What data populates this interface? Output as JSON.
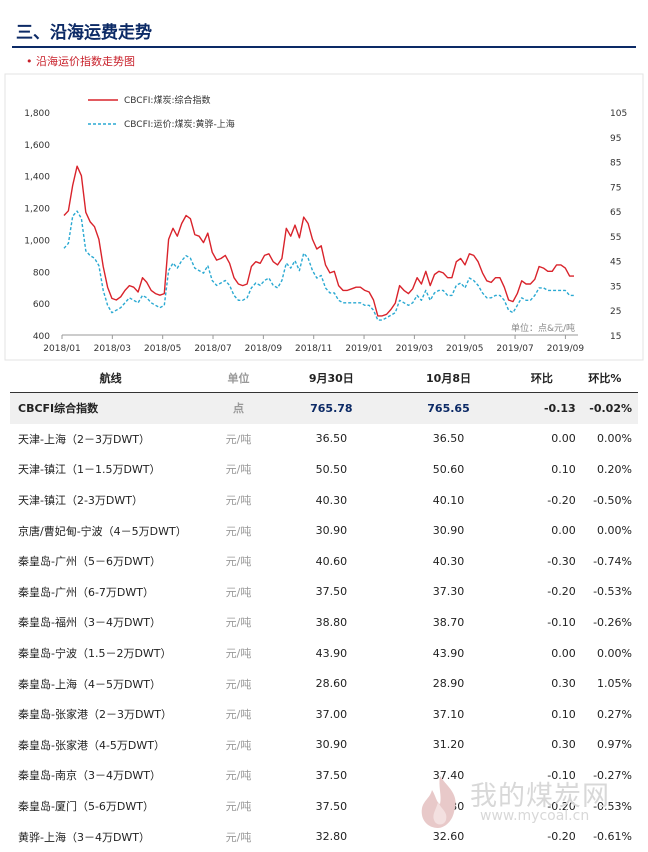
{
  "section_title": "三、沿海运费走势",
  "chart_title": "• 沿海运价指数走势图",
  "chart_data": {
    "type": "line",
    "x_ticks": [
      "2018/01",
      "2018/03",
      "2018/05",
      "2018/07",
      "2018/09",
      "2018/11",
      "2019/01",
      "2019/03",
      "2019/05",
      "2019/07",
      "2019/09"
    ],
    "y_left_ticks": [
      "400",
      "600",
      "800",
      "1,000",
      "1,200",
      "1,400",
      "1,600",
      "1,800"
    ],
    "y_left_range": [
      400,
      1800
    ],
    "y_right_ticks": [
      "15",
      "25",
      "35",
      "45",
      "55",
      "65",
      "75",
      "85",
      "95",
      "105"
    ],
    "y_right_range": [
      15,
      105
    ],
    "unit_note": "单位：点&元/吨",
    "legend_position": "top-left",
    "series": [
      {
        "name": "CBCFI:煤炭:综合指数",
        "axis": "left",
        "color": "#d9232b",
        "dash": "solid",
        "values": [
          1150,
          1180,
          1340,
          1460,
          1400,
          1170,
          1110,
          1080,
          1000,
          830,
          700,
          630,
          620,
          640,
          680,
          710,
          700,
          670,
          760,
          730,
          680,
          660,
          650,
          660,
          1000,
          1070,
          1020,
          1100,
          1150,
          1130,
          1030,
          1020,
          980,
          1040,
          920,
          870,
          880,
          900,
          850,
          760,
          720,
          710,
          720,
          830,
          860,
          850,
          900,
          910,
          860,
          840,
          880,
          1070,
          1020,
          1090,
          1010,
          1140,
          1100,
          1000,
          940,
          960,
          840,
          790,
          800,
          710,
          680,
          680,
          690,
          700,
          700,
          680,
          670,
          620,
          520,
          520,
          530,
          560,
          600,
          710,
          680,
          660,
          690,
          760,
          720,
          800,
          710,
          780,
          800,
          790,
          760,
          760,
          860,
          880,
          840,
          910,
          900,
          860,
          790,
          740,
          730,
          760,
          760,
          700,
          620,
          610,
          660,
          740,
          720,
          720,
          750,
          830,
          820,
          800,
          800,
          840,
          840,
          820,
          770,
          770
        ]
      },
      {
        "name": "CBCFI:运价:煤炭:黄骅-上海",
        "axis": "right",
        "color": "#2aa9d2",
        "dash": "dotted",
        "values": [
          50,
          52,
          63,
          65,
          62,
          49,
          47,
          46,
          43,
          33,
          27,
          24,
          25,
          26,
          28,
          30,
          29,
          28,
          31,
          30,
          28,
          27,
          26,
          27,
          41,
          44,
          42,
          45,
          47,
          46,
          42,
          41,
          40,
          43,
          37,
          35,
          36,
          37,
          35,
          31,
          29,
          29,
          30,
          34,
          36,
          35,
          37,
          38,
          35,
          34,
          37,
          44,
          42,
          45,
          41,
          48,
          46,
          41,
          38,
          39,
          34,
          32,
          32,
          29,
          28,
          28,
          28,
          28,
          28,
          27,
          27,
          25,
          21,
          21,
          22,
          23,
          24,
          29,
          28,
          27,
          28,
          31,
          29,
          33,
          29,
          32,
          33,
          33,
          31,
          31,
          35,
          36,
          34,
          38,
          37,
          35,
          32,
          30,
          30,
          31,
          31,
          29,
          25,
          24,
          27,
          30,
          29,
          29,
          31,
          34,
          34,
          33,
          33,
          33,
          33,
          33,
          31,
          31
        ]
      }
    ]
  },
  "table": {
    "headers": [
      "航线",
      "单位",
      "9月30日",
      "10月8日",
      "环比",
      "环比%"
    ],
    "rows": [
      [
        "CBCFI综合指数",
        "点",
        "765.78",
        "765.65",
        "-0.13",
        "-0.02%"
      ],
      [
        "天津-上海（2－3万DWT）",
        "元/吨",
        "36.50",
        "36.50",
        "0.00",
        "0.00%"
      ],
      [
        "天津-镇江（1－1.5万DWT）",
        "元/吨",
        "50.50",
        "50.60",
        "0.10",
        "0.20%"
      ],
      [
        "天津-镇江（2-3万DWT）",
        "元/吨",
        "40.30",
        "40.10",
        "-0.20",
        "-0.50%"
      ],
      [
        "京唐/曹妃甸-宁波（4－5万DWT）",
        "元/吨",
        "30.90",
        "30.90",
        "0.00",
        "0.00%"
      ],
      [
        "秦皇岛-广州（5－6万DWT）",
        "元/吨",
        "40.60",
        "40.30",
        "-0.30",
        "-0.74%"
      ],
      [
        "秦皇岛-广州（6-7万DWT）",
        "元/吨",
        "37.50",
        "37.30",
        "-0.20",
        "-0.53%"
      ],
      [
        "秦皇岛-福州（3－4万DWT）",
        "元/吨",
        "38.80",
        "38.70",
        "-0.10",
        "-0.26%"
      ],
      [
        "秦皇岛-宁波（1.5－2万DWT）",
        "元/吨",
        "43.90",
        "43.90",
        "0.00",
        "0.00%"
      ],
      [
        "秦皇岛-上海（4－5万DWT）",
        "元/吨",
        "28.60",
        "28.90",
        "0.30",
        "1.05%"
      ],
      [
        "秦皇岛-张家港（2－3万DWT）",
        "元/吨",
        "37.00",
        "37.10",
        "0.10",
        "0.27%"
      ],
      [
        "秦皇岛-张家港（4-5万DWT）",
        "元/吨",
        "30.90",
        "31.20",
        "0.30",
        "0.97%"
      ],
      [
        "秦皇岛-南京（3－4万DWT）",
        "元/吨",
        "37.50",
        "37.40",
        "-0.10",
        "-0.27%"
      ],
      [
        "秦皇岛-厦门（5-6万DWT）",
        "元/吨",
        "37.50",
        "37.30",
        "-0.20",
        "-0.53%"
      ],
      [
        "黄骅-上海（3－4万DWT）",
        "元/吨",
        "32.80",
        "32.60",
        "-0.20",
        "-0.61%"
      ]
    ]
  },
  "watermark": {
    "brand": "我的煤炭网",
    "url": "www.mycoal.cn"
  }
}
